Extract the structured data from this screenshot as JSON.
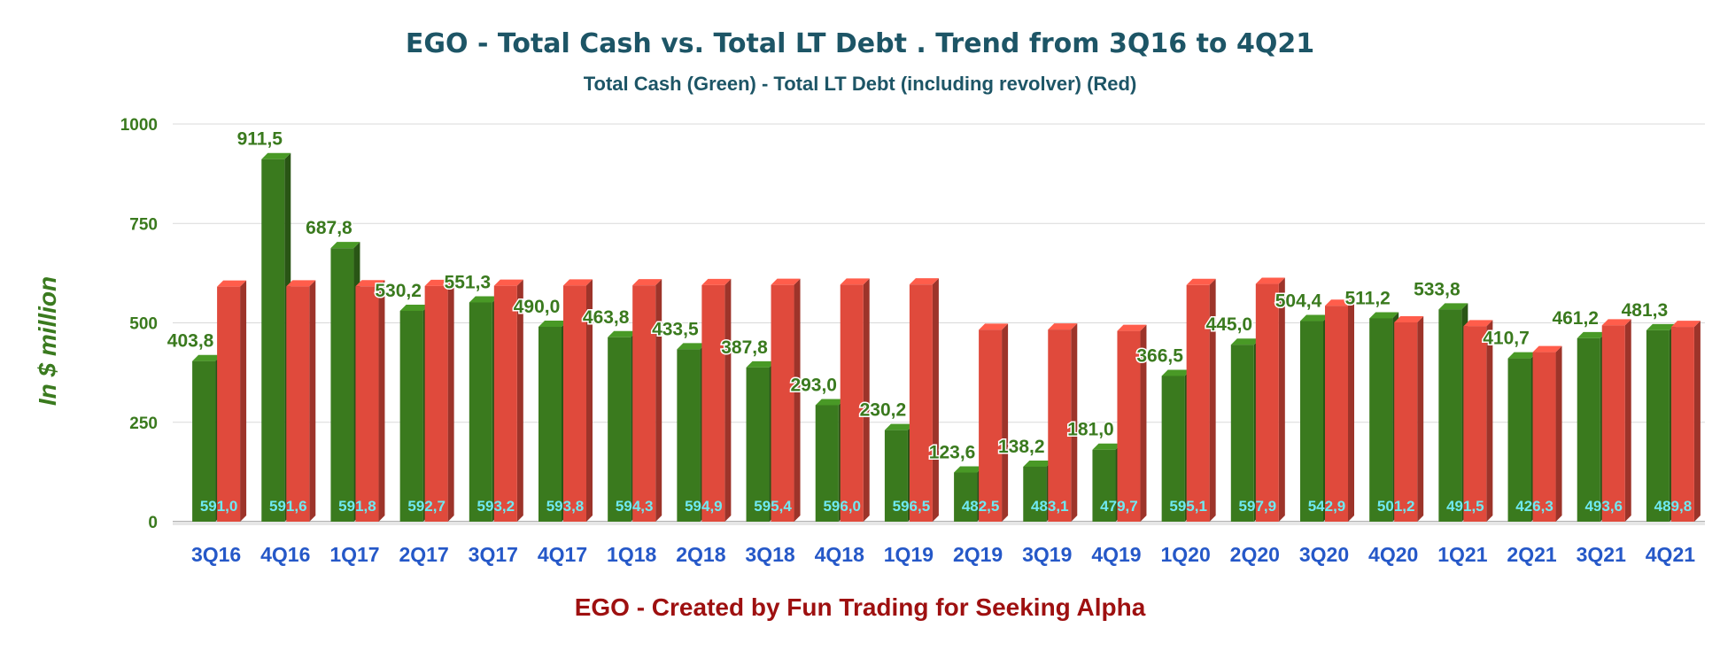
{
  "title": "EGO - Total Cash vs. Total LT Debt  . Trend from 3Q16 to 4Q21",
  "subtitle": "Total Cash (Green) -  Total LT Debt (including revolver) (Red)",
  "ylabel": "In $ million",
  "footer": "EGO - Created by Fun Trading for Seeking Alpha",
  "colors": {
    "cash": "#3a7a1e",
    "debt": "#e04a3c",
    "cash_label": "#3a7a1e",
    "debt_label": "#6fe9f2",
    "category_label": "#2558c8",
    "tick_label": "#3a7a1e"
  },
  "chart_data": {
    "type": "bar",
    "categories": [
      "3Q16",
      "4Q16",
      "1Q17",
      "2Q17",
      "3Q17",
      "4Q17",
      "1Q18",
      "2Q18",
      "3Q18",
      "4Q18",
      "1Q19",
      "2Q19",
      "3Q19",
      "4Q19",
      "1Q20",
      "2Q20",
      "3Q20",
      "4Q20",
      "1Q21",
      "2Q21",
      "3Q21",
      "4Q21"
    ],
    "series": [
      {
        "values": [
          403.8,
          911.5,
          687.8,
          530.2,
          551.3,
          490.0,
          463.8,
          433.5,
          387.8,
          293.0,
          230.2,
          123.6,
          138.2,
          181.0,
          366.5,
          445.0,
          504.4,
          511.2,
          533.8,
          410.7,
          461.2,
          481.3
        ],
        "labels": [
          "403,8",
          "911,5",
          "687,8",
          "530,2",
          "551,3",
          "490,0",
          "463,8",
          "433,5",
          "387,8",
          "293,0",
          "230,2",
          "123,6",
          "138,2",
          "181,0",
          "366,5",
          "445,0",
          "504,4",
          "511,2",
          "533,8",
          "410,7",
          "461,2",
          "481,3"
        ]
      },
      {
        "values": [
          591.0,
          591.6,
          591.8,
          592.7,
          593.2,
          593.8,
          594.3,
          594.9,
          595.4,
          596.0,
          596.5,
          482.5,
          483.1,
          479.7,
          595.1,
          597.9,
          542.9,
          501.2,
          491.5,
          426.3,
          493.6,
          489.8
        ],
        "labels": [
          "591,0",
          "591,6",
          "591,8",
          "592,7",
          "593,2",
          "593,8",
          "594,3",
          "594,9",
          "595,4",
          "596,0",
          "596,5",
          "482,5",
          "483,1",
          "479,7",
          "595,1",
          "597,9",
          "542,9",
          "501,2",
          "491,5",
          "426,3",
          "493,6",
          "489,8"
        ]
      }
    ],
    "yticks": [
      0,
      250,
      500,
      750,
      1000
    ],
    "ylim": [
      0,
      1000
    ],
    "grid": true,
    "legend": "none"
  }
}
